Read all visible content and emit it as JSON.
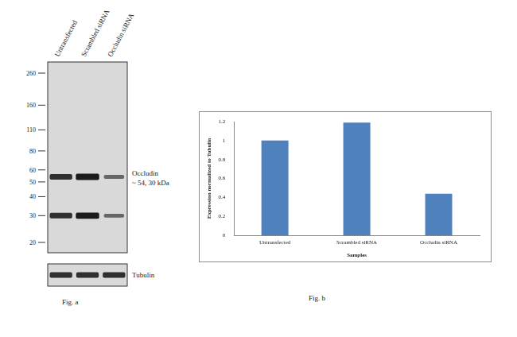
{
  "figure_a": {
    "caption": "Fig. a",
    "lanes": [
      "Untransfected",
      "Scrambled siRNA",
      "Occludin siRNA"
    ],
    "markers_kda": [
      260,
      160,
      110,
      80,
      60,
      50,
      40,
      30,
      20
    ],
    "target_label": "Occludin",
    "target_size_label": "~ 54, 30 kDa",
    "bands": [
      {
        "kda": 54,
        "relative_intensity": [
          1,
          1.2,
          0.45
        ]
      },
      {
        "kda": 30,
        "relative_intensity": [
          1,
          1.2,
          0.45
        ]
      }
    ],
    "loading_control": {
      "label": "Tubulin",
      "relative_intensity": [
        1,
        1,
        1
      ]
    }
  },
  "chart_data": {
    "type": "bar",
    "caption": "Fig. b",
    "x_label": "Samples",
    "y_label": "Expression normalized to Tubulin",
    "categories": [
      "Untransfected",
      "Scrambled siRNA",
      "Occludin siRNA"
    ],
    "values": [
      1.0,
      1.19,
      0.44
    ],
    "color": "#4f81bd",
    "ylim": [
      0,
      1.2
    ],
    "yticks": [
      0,
      0.2,
      0.4,
      0.6,
      0.8,
      1,
      1.2
    ],
    "grid": false
  }
}
